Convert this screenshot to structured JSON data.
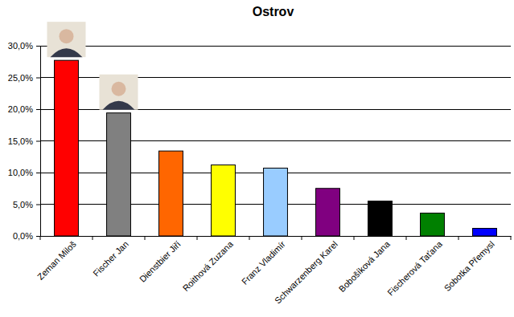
{
  "chart_data": {
    "type": "bar",
    "title": "Ostrov",
    "categories": [
      "Zeman Miloš",
      "Fischer Jan",
      "Dienstbier Jiří",
      "Roithová Zuzana",
      "Franz Vladimír",
      "Schwarzenberg Karel",
      "Bobošíková Jana",
      "Fischerová Taťana",
      "Sobotka Přemysl"
    ],
    "values": [
      27.7,
      19.4,
      13.4,
      11.2,
      10.7,
      7.5,
      5.5,
      3.6,
      1.2
    ],
    "colors": [
      "#ff0000",
      "#808080",
      "#ff6600",
      "#ffff00",
      "#99ccff",
      "#800080",
      "#000000",
      "#008000",
      "#0000ff"
    ],
    "ylim": [
      0,
      30
    ],
    "yticks": [
      {
        "value": 0,
        "label": "0,0%"
      },
      {
        "value": 5,
        "label": "5,0%"
      },
      {
        "value": 10,
        "label": "10,0%"
      },
      {
        "value": 15,
        "label": "15,0%"
      },
      {
        "value": 20,
        "label": "20,0%"
      },
      {
        "value": 25,
        "label": "25,0%"
      },
      {
        "value": 30,
        "label": "30,0%"
      }
    ],
    "grid": true
  }
}
